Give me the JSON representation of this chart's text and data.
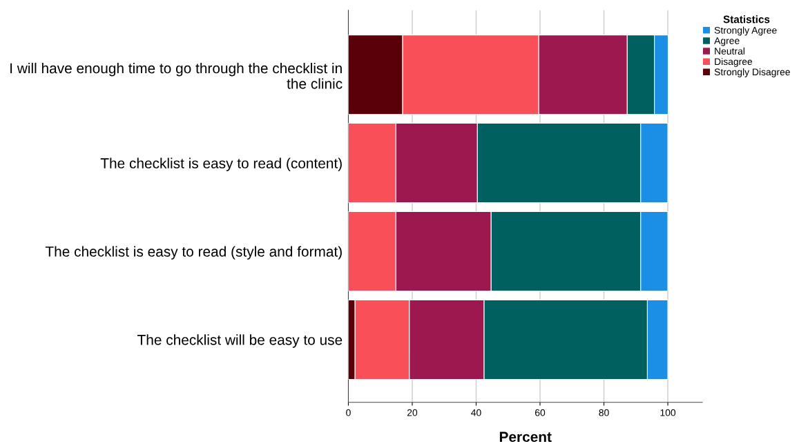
{
  "chart_data": {
    "type": "bar",
    "orientation": "horizontal",
    "stacked": true,
    "xlabel": "Percent",
    "legend_title": "Statistics",
    "legend": "top right",
    "categories": [
      "I will have enough time to go through the checklist in\nthe clinic",
      "The checklist is easy to read (content)",
      "The checklist is easy to read (style and format)",
      "The checklist will be easy to use"
    ],
    "series": [
      {
        "name": "Strongly Disagree",
        "color": "#5a0008",
        "values": [
          17.0,
          null,
          null,
          2.1
        ]
      },
      {
        "name": "Disagree",
        "color": "#f94f58",
        "values": [
          42.6,
          14.9,
          14.9,
          17.0
        ]
      },
      {
        "name": "Neutral",
        "color": "#9e1850",
        "values": [
          27.7,
          25.5,
          29.8,
          23.4
        ]
      },
      {
        "name": "Agree",
        "color": "#005f5f",
        "values": [
          8.5,
          51.1,
          46.8,
          51.1
        ]
      },
      {
        "name": "Strongly Agree",
        "color": "#1b8fe6",
        "values": [
          4.3,
          8.5,
          8.5,
          6.4
        ]
      }
    ],
    "xlim": [
      0,
      110.8
    ],
    "xticks": [
      0,
      20,
      40,
      60,
      80,
      100
    ],
    "grid": "x"
  }
}
